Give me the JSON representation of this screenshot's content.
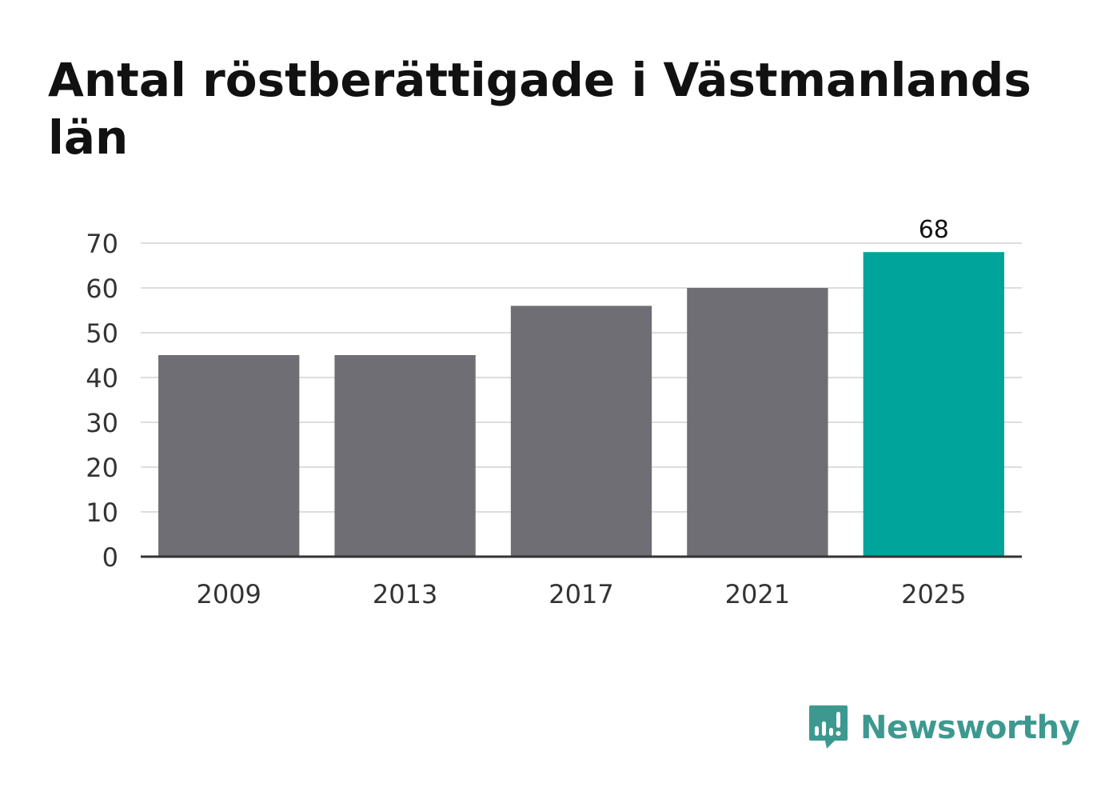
{
  "title": "Antal röstberättigade i Västmanlands län",
  "brand": {
    "name": "Newsworthy"
  },
  "colors": {
    "bar": "#6f6e74",
    "highlight": "#00a49a",
    "grid": "#dddddd",
    "axis": "#333333",
    "text": "#333333",
    "brand": "#3d9990"
  },
  "chart_data": {
    "type": "bar",
    "title": "Antal röstberättigade i Västmanlands län",
    "xlabel": "",
    "ylabel": "",
    "categories": [
      "2009",
      "2013",
      "2017",
      "2021",
      "2025"
    ],
    "values": [
      45,
      45,
      56,
      60,
      68
    ],
    "highlight_index": 4,
    "data_labels": {
      "2025": "68"
    },
    "ylim": [
      0,
      70
    ],
    "yticks": [
      0,
      10,
      20,
      30,
      40,
      50,
      60,
      70
    ],
    "grid": true,
    "legend": "none"
  }
}
